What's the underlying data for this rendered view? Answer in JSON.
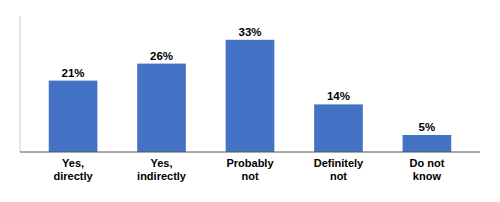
{
  "chart_data": {
    "type": "bar",
    "categories": [
      "Yes,\ndirectly",
      "Yes,\nindirectly",
      "Probably\nnot",
      "Definitely\nnot",
      "Do not\nknow"
    ],
    "values": [
      21,
      26,
      33,
      14,
      5
    ],
    "value_labels": [
      "21%",
      "26%",
      "33%",
      "14%",
      "5%"
    ],
    "data_labels": true,
    "color": "#4472C4",
    "ylim": [
      0,
      40
    ],
    "tick_labels": "x",
    "grid": false
  }
}
